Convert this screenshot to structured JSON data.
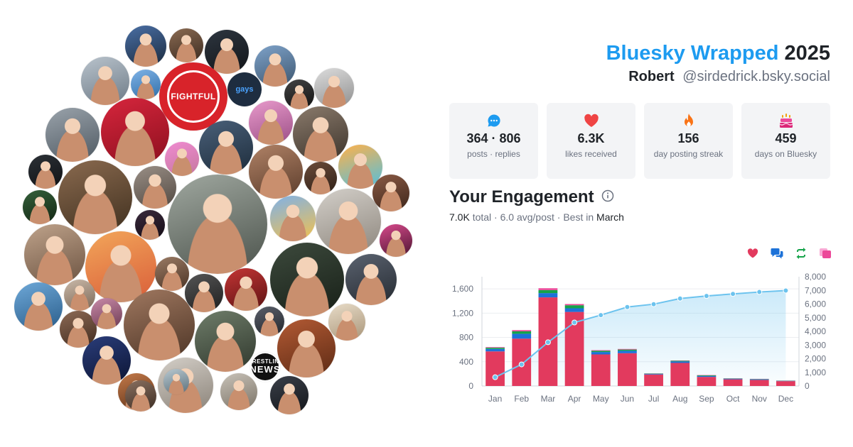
{
  "header": {
    "title_brand": "Bluesky Wrapped",
    "title_year": "2025",
    "display_name": "Robert",
    "handle": "@sirdedrick.bsky.social"
  },
  "avatars": [
    {
      "kind": "photo",
      "c1": "#4a6fa5",
      "c2": "#1b2a3d"
    },
    {
      "kind": "photo",
      "c1": "#8b6b52",
      "c2": "#3a2a20"
    },
    {
      "kind": "photo",
      "c1": "#2e3640",
      "c2": "#111418"
    },
    {
      "kind": "photo",
      "c1": "#7ea2c9",
      "c2": "#3d566f"
    },
    {
      "kind": "photo",
      "c1": "#b9c3cc",
      "c2": "#6d7a86"
    },
    {
      "kind": "photo",
      "c1": "#7fb2e6",
      "c2": "#2f6ea8"
    },
    {
      "kind": "logo-red",
      "text": "FIGHTFUL"
    },
    {
      "kind": "text",
      "text": "gays"
    },
    {
      "kind": "photo",
      "c1": "#444",
      "c2": "#111"
    },
    {
      "kind": "photo",
      "c1": "#dcdcdc",
      "c2": "#8f8f8f"
    },
    {
      "kind": "photo",
      "c1": "#9aa3ab",
      "c2": "#4f5962"
    },
    {
      "kind": "photo",
      "c1": "#d7263d",
      "c2": "#8b0f1e"
    },
    {
      "kind": "photo",
      "c1": "#f08bd0",
      "c2": "#c4779f"
    },
    {
      "kind": "photo",
      "c1": "#4a6079",
      "c2": "#1d2c3b"
    },
    {
      "kind": "photo",
      "c1": "#e89acb",
      "c2": "#9b4f86"
    },
    {
      "kind": "photo",
      "c1": "#8b7b6c",
      "c2": "#3c332b"
    },
    {
      "kind": "photo",
      "c1": "#2c3137",
      "c2": "#0f1114"
    },
    {
      "kind": "photo",
      "c1": "#8a6a4f",
      "c2": "#40301f"
    },
    {
      "kind": "photo",
      "c1": "#9a8f86",
      "c2": "#514841"
    },
    {
      "kind": "photo",
      "c1": "#b08266",
      "c2": "#5b3c2b"
    },
    {
      "kind": "photo",
      "c1": "#6b4c3a",
      "c2": "#2e1f16"
    },
    {
      "kind": "photo",
      "c1": "#ffb14a",
      "c2": "#4fbfe0"
    },
    {
      "kind": "photo",
      "c1": "#35603a",
      "c2": "#122614"
    },
    {
      "kind": "photo",
      "c1": "#a0a8a0",
      "c2": "#4b524b"
    },
    {
      "kind": "photo",
      "c1": "#7fb1e8",
      "c2": "#f3c14c"
    },
    {
      "kind": "photo",
      "c1": "#d3cfc9",
      "c2": "#8d867d"
    },
    {
      "kind": "photo",
      "c1": "#8a5a44",
      "c2": "#3d261b"
    },
    {
      "kind": "photo",
      "c1": "#3a2a3c",
      "c2": "#140c15"
    },
    {
      "kind": "photo",
      "c1": "#bfa38b",
      "c2": "#6c5341"
    },
    {
      "kind": "photo",
      "c1": "#f2a65a",
      "c2": "#d95d39"
    },
    {
      "kind": "photo",
      "c1": "#d84a8c",
      "c2": "#4a1530"
    },
    {
      "kind": "photo",
      "c1": "#9a7a64",
      "c2": "#4a3324"
    },
    {
      "kind": "photo",
      "c1": "#555",
      "c2": "#1e1e1e"
    },
    {
      "kind": "photo",
      "c1": "#c43535",
      "c2": "#5a1212"
    },
    {
      "kind": "photo",
      "c1": "#3d4a3d",
      "c2": "#171f17"
    },
    {
      "kind": "photo",
      "c1": "#5b6370",
      "c2": "#252a31"
    },
    {
      "kind": "photo",
      "c1": "#6ea8d8",
      "c2": "#2a5d8a"
    },
    {
      "kind": "photo",
      "c1": "#c9b8a8",
      "c2": "#7a6655"
    },
    {
      "kind": "photo",
      "c1": "#a07860",
      "c2": "#4d3526"
    },
    {
      "kind": "photo",
      "c1": "#5a5f6a",
      "c2": "#23262c"
    },
    {
      "kind": "photo",
      "c1": "#e8dcc8",
      "c2": "#a89478"
    },
    {
      "kind": "photo",
      "c1": "#8d6a55",
      "c2": "#402b1f"
    },
    {
      "kind": "photo",
      "c1": "#c98aa8",
      "c2": "#6b3a52"
    },
    {
      "kind": "photo",
      "c1": "#6f7d6a",
      "c2": "#2f372c"
    },
    {
      "kind": "photo",
      "c1": "#b35a34",
      "c2": "#5c2a14"
    },
    {
      "kind": "photo",
      "c1": "#2a3d7a",
      "c2": "#0c1433"
    },
    {
      "kind": "photo",
      "c1": "#c47a4a",
      "c2": "#5e3218"
    },
    {
      "kind": "photo",
      "c1": "#d4cfc8",
      "c2": "#8a8278"
    },
    {
      "kind": "logo-black",
      "line1": "WRESTLING",
      "line2": "NEWS"
    },
    {
      "kind": "photo",
      "c1": "#c8c2b8",
      "c2": "#7a7266"
    },
    {
      "kind": "photo",
      "c1": "#3a3f48",
      "c2": "#13161b"
    },
    {
      "kind": "photo",
      "c1": "#8a7060",
      "c2": "#3b2c22"
    },
    {
      "kind": "photo",
      "c1": "#b8c8d0",
      "c2": "#5b6f7a"
    }
  ],
  "stats": [
    {
      "icon": "chat-bubble-icon",
      "color": "#1d9bf0",
      "value": "364 · 806",
      "label": "posts · replies"
    },
    {
      "icon": "heart-icon",
      "color": "#ef4444",
      "value": "6.3K",
      "label": "likes received"
    },
    {
      "icon": "flame-icon",
      "color": "#f97316",
      "value": "156",
      "label": "day posting streak"
    },
    {
      "icon": "cake-icon",
      "color": "#ec4899",
      "value": "459",
      "label": "days on Bluesky"
    }
  ],
  "engagement": {
    "title": "Your Engagement",
    "total": "7.0K",
    "total_suffix": " total · ",
    "avg": "6.0 avg/post",
    "best_prefix": " · Best in ",
    "best_month": "March"
  },
  "legend": [
    {
      "icon": "heart-icon",
      "color": "#e23a5e",
      "series": "likes"
    },
    {
      "icon": "reply-icon",
      "color": "#1d72d8",
      "series": "replies"
    },
    {
      "icon": "repost-icon",
      "color": "#16a34a",
      "series": "reposts"
    },
    {
      "icon": "quote-icon",
      "color": "#ec4899",
      "series": "quotes"
    }
  ],
  "chart_data": {
    "type": "bar",
    "categories": [
      "Jan",
      "Feb",
      "Mar",
      "Apr",
      "May",
      "Jun",
      "Jul",
      "Aug",
      "Sep",
      "Oct",
      "Nov",
      "Dec"
    ],
    "series": [
      {
        "color": "#e23a5e",
        "values": [
          570,
          780,
          1460,
          1220,
          520,
          540,
          190,
          380,
          150,
          110,
          100,
          80
        ]
      },
      {
        "color": "#1d72d8",
        "values": [
          40,
          80,
          70,
          60,
          40,
          40,
          10,
          25,
          15,
          10,
          10,
          5
        ]
      },
      {
        "color": "#16a34a",
        "values": [
          20,
          40,
          50,
          50,
          20,
          20,
          5,
          10,
          10,
          5,
          5,
          3
        ]
      },
      {
        "color": "#ec4899",
        "values": [
          10,
          20,
          30,
          20,
          10,
          10,
          3,
          5,
          5,
          3,
          3,
          2
        ]
      }
    ],
    "line": {
      "color": "#6cc3ee",
      "axis": "right",
      "values": [
        640,
        1580,
        3200,
        4650,
        5190,
        5780,
        5990,
        6400,
        6590,
        6740,
        6880,
        6990
      ]
    },
    "y_left": {
      "lim": [
        0,
        1800
      ],
      "ticks": [
        "0",
        "400",
        "800",
        "1,200",
        "1,600"
      ],
      "tick_values": [
        0,
        400,
        800,
        1200,
        1600
      ]
    },
    "y_right": {
      "lim": [
        0,
        8000
      ],
      "ticks": [
        "0",
        "1,000",
        "2,000",
        "3,000",
        "4,000",
        "5,000",
        "6,000",
        "7,000",
        "8,000"
      ],
      "tick_values": [
        0,
        1000,
        2000,
        3000,
        4000,
        5000,
        6000,
        7000,
        8000
      ]
    },
    "grid": true
  }
}
